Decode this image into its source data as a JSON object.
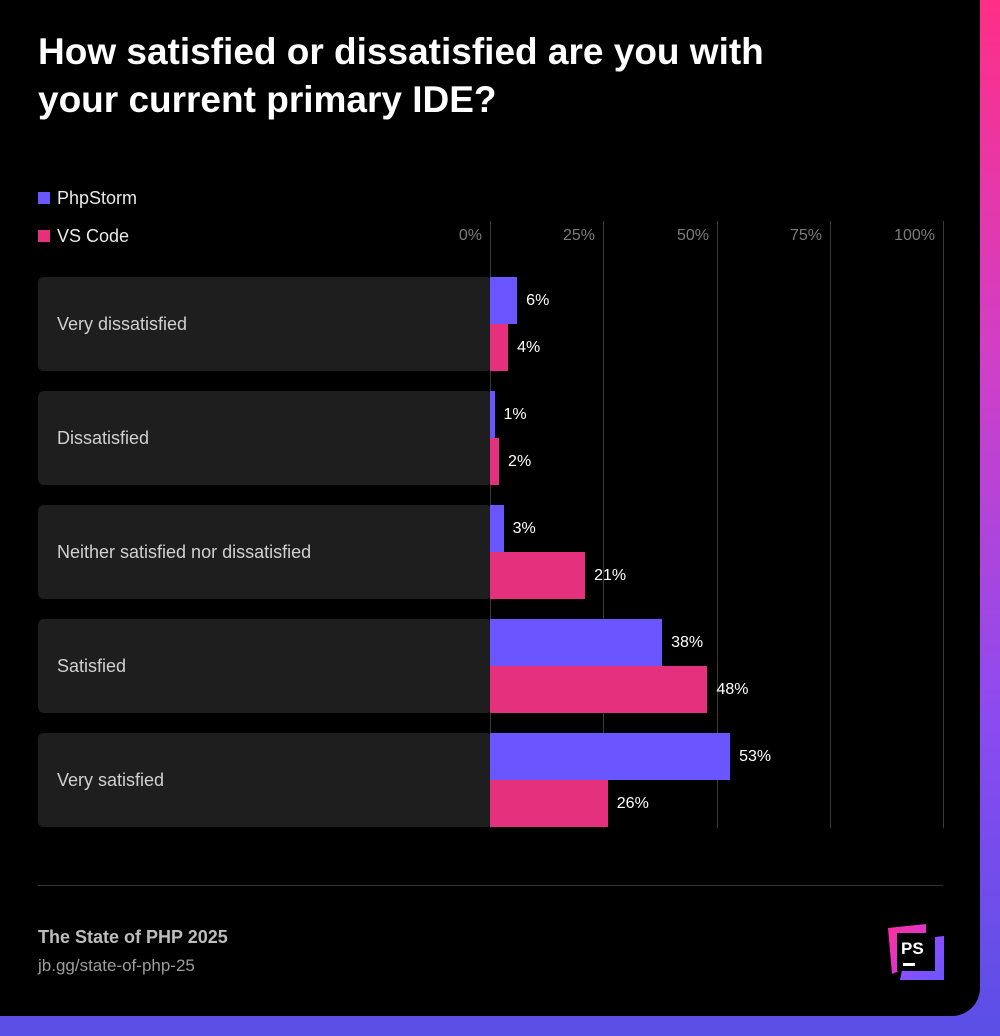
{
  "chart_data": {
    "type": "bar",
    "orientation": "horizontal",
    "title": "How satisfied or dissatisfied are you with your current primary IDE?",
    "categories": [
      "Very dissatisfied",
      "Dissatisfied",
      "Neither satisfied nor dissatisfied",
      "Satisfied",
      "Very satisfied"
    ],
    "series": [
      {
        "name": "PhpStorm",
        "color": "#6b55ff",
        "values": [
          6,
          1,
          3,
          38,
          53
        ],
        "labels": [
          "6%",
          "1%",
          "3%",
          "38%",
          "53%"
        ]
      },
      {
        "name": "VS Code",
        "color": "#e5307d",
        "values": [
          4,
          2,
          21,
          48,
          26
        ],
        "labels": [
          "4%",
          "2%",
          "21%",
          "48%",
          "26%"
        ]
      }
    ],
    "xlim": [
      0,
      100
    ],
    "xticks": [
      "0%",
      "25%",
      "50%",
      "75%",
      "100%"
    ],
    "grid": true,
    "legend": "top-left"
  },
  "footer": {
    "title": "The State of PHP 2025",
    "url": "jb.gg/state-of-php-25"
  },
  "logo": {
    "text": "PS",
    "icon": "phpstorm-logo-icon",
    "colors": {
      "magenta": "#ff2f9a",
      "violet": "#7a4dff",
      "dark": "#000000"
    }
  }
}
